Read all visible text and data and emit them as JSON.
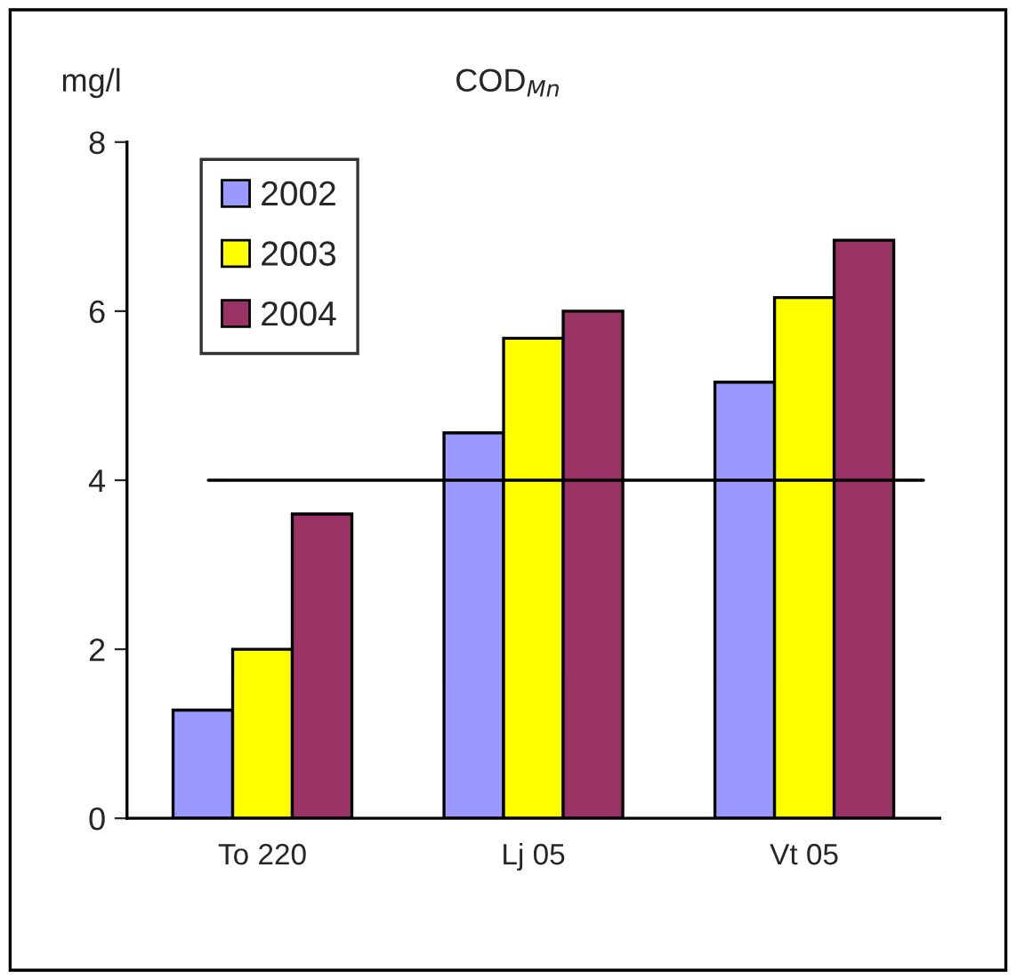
{
  "chart_data": {
    "type": "bar",
    "title": "COD$_{Mn}$",
    "ylabel": "mg/l",
    "categories": [
      "To 220",
      "Lj 05",
      "Vt 05"
    ],
    "series": [
      {
        "name": "2002",
        "color": "#9999ff",
        "values": [
          1.28,
          4.56,
          5.16
        ]
      },
      {
        "name": "2003",
        "color": "#ffff00",
        "values": [
          2.0,
          5.68,
          6.16
        ]
      },
      {
        "name": "2004",
        "color": "#993366",
        "values": [
          3.6,
          6.0,
          6.84
        ]
      }
    ],
    "ylim": [
      0,
      8
    ],
    "yticks": [
      0,
      2,
      4,
      6,
      8
    ],
    "ref_lines": [
      {
        "axis": "y",
        "value": 4,
        "color": "#000000"
      }
    ],
    "grid": false,
    "legend": "top left"
  }
}
